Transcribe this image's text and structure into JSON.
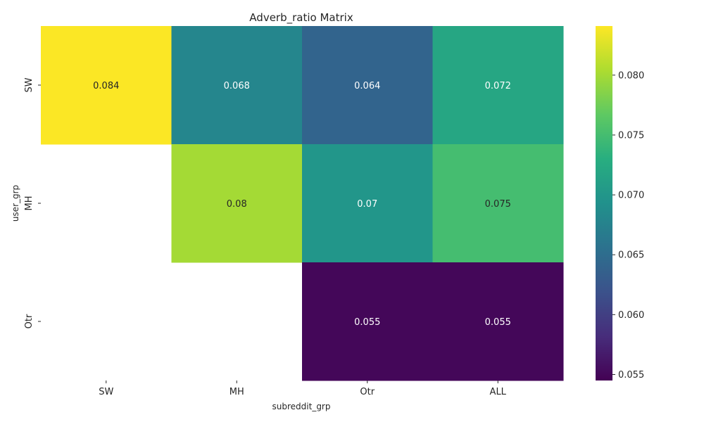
{
  "chart_data": {
    "type": "heatmap",
    "title": "Adverb_ratio Matrix",
    "xlabel": "subreddit_grp",
    "ylabel": "user_grp",
    "x_categories": [
      "SW",
      "MH",
      "Otr",
      "ALL"
    ],
    "y_categories": [
      "SW",
      "MH",
      "Otr"
    ],
    "values": [
      [
        0.084,
        0.068,
        0.064,
        0.072
      ],
      [
        null,
        0.08,
        0.07,
        0.075
      ],
      [
        null,
        null,
        0.055,
        0.055
      ]
    ],
    "value_labels": [
      [
        "0.084",
        "0.068",
        "0.064",
        "0.072"
      ],
      [
        "",
        "0.08",
        "0.07",
        "0.075"
      ],
      [
        "",
        "",
        "0.055",
        "0.055"
      ]
    ],
    "colormap": "viridis",
    "vmin": 0.0545,
    "vmax": 0.0841,
    "colorbar_ticks": [
      "0.055",
      "0.060",
      "0.065",
      "0.070",
      "0.075",
      "0.080"
    ],
    "colorbar_tick_values": [
      0.055,
      0.06,
      0.065,
      0.07,
      0.075,
      0.08
    ],
    "grid": false
  }
}
